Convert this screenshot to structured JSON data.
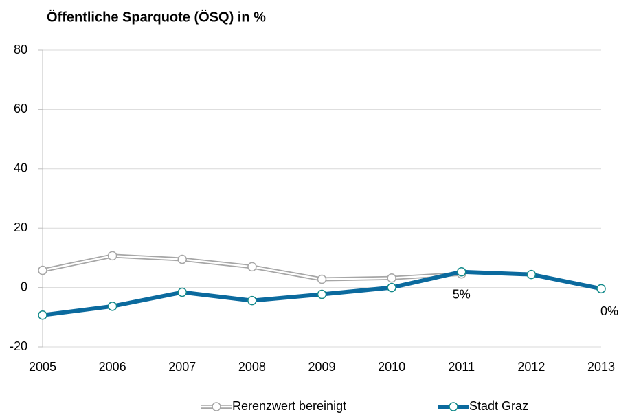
{
  "chart_data": {
    "type": "line",
    "title": "Öffentliche Sparquote (ÖSQ) in %",
    "categories": [
      "2005",
      "2006",
      "2007",
      "2008",
      "2009",
      "2010",
      "2011",
      "2012",
      "2013"
    ],
    "series": [
      {
        "name": "Rerenzwert bereinigt",
        "color": "#a6a6a6",
        "values": [
          5.8,
          10.7,
          9.5,
          7,
          2.8,
          3.2,
          4.6,
          null,
          null
        ]
      },
      {
        "name": "Stadt Graz",
        "color": "#0b6a9e",
        "values": [
          -9.3,
          -6.3,
          -1.6,
          -4.4,
          -2.3,
          0,
          5.3,
          4.4,
          -0.4
        ],
        "value_labels": [
          null,
          null,
          null,
          null,
          null,
          null,
          "5%",
          null,
          "0%"
        ]
      }
    ],
    "ylim": [
      -20,
      80
    ],
    "yticks": [
      -20,
      0,
      20,
      40,
      60,
      80
    ],
    "grid": true,
    "legend": "bottom"
  }
}
